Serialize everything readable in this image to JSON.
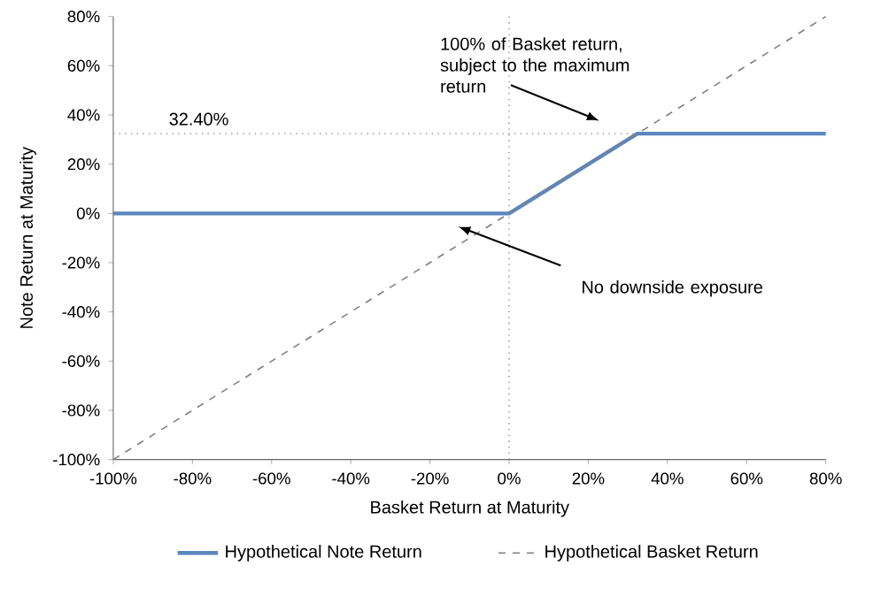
{
  "chart_data": {
    "type": "line",
    "xlabel": "Basket Return at Maturity",
    "ylabel": "Note Return at Maturity",
    "xlim": [
      -100,
      80
    ],
    "ylim": [
      -100,
      80
    ],
    "xticks": [
      {
        "value": -100,
        "label": "-100%"
      },
      {
        "value": -80,
        "label": "-80%"
      },
      {
        "value": -60,
        "label": "-60%"
      },
      {
        "value": -40,
        "label": "-40%"
      },
      {
        "value": -20,
        "label": "-20%"
      },
      {
        "value": 0,
        "label": "0%"
      },
      {
        "value": 20,
        "label": "20%"
      },
      {
        "value": 40,
        "label": "40%"
      },
      {
        "value": 60,
        "label": "60%"
      },
      {
        "value": 80,
        "label": "80%"
      }
    ],
    "yticks": [
      {
        "value": -100,
        "label": "-100%"
      },
      {
        "value": -80,
        "label": "-80%"
      },
      {
        "value": -60,
        "label": "-60%"
      },
      {
        "value": -40,
        "label": "-40%"
      },
      {
        "value": -20,
        "label": "-20%"
      },
      {
        "value": 0,
        "label": "0%"
      },
      {
        "value": 20,
        "label": "20%"
      },
      {
        "value": 40,
        "label": "40%"
      },
      {
        "value": 60,
        "label": "60%"
      },
      {
        "value": 80,
        "label": "80%"
      }
    ],
    "series": [
      {
        "name": "Hypothetical Note Return",
        "color": "#5b87be",
        "x": [
          -100,
          0,
          32.4,
          80
        ],
        "values": [
          0,
          0,
          32.4,
          32.4
        ],
        "line_style": "solid"
      },
      {
        "name": "Hypothetical Basket Return",
        "color": "#808080",
        "x": [
          -100,
          80
        ],
        "values": [
          -100,
          80
        ],
        "line_style": "dashed"
      }
    ],
    "ref_lines": [
      {
        "axis": "x",
        "value": 0,
        "color": "#808080",
        "line_style": "dotted"
      },
      {
        "axis": "y",
        "value": 32.4,
        "label": "32.40%",
        "color": "#808080",
        "line_style": "dotted"
      }
    ],
    "annotations": [
      "100% of Basket return, subject to the maximum return",
      "No downside exposure"
    ],
    "legend": "bottom",
    "marker": "none",
    "grid": false
  }
}
